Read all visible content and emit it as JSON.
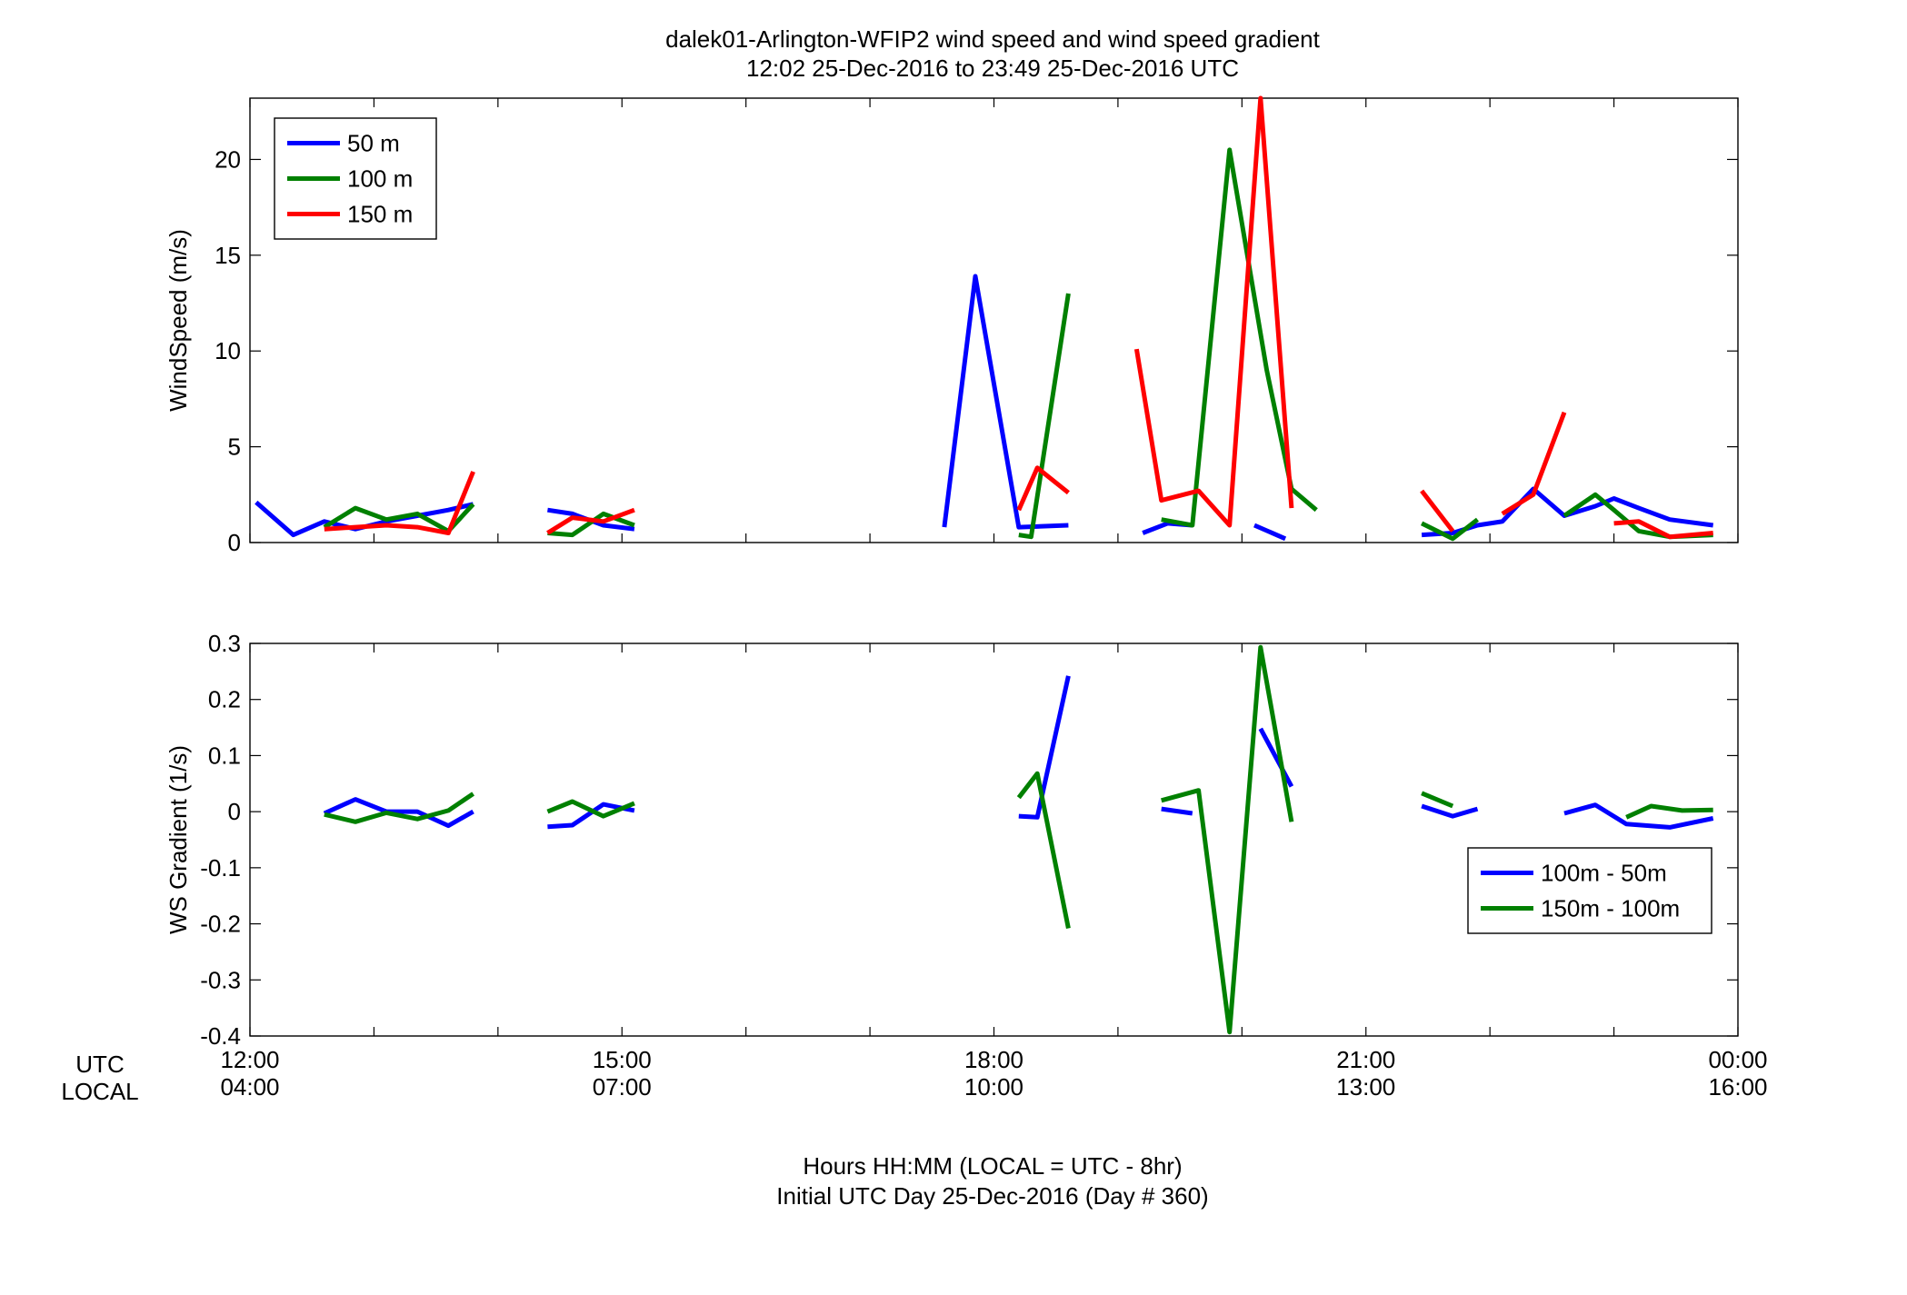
{
  "figure": {
    "title_line1": "dalek01-Arlington-WFIP2  wind speed and wind speed gradient",
    "title_line2": "12:02 25-Dec-2016 to 23:49 25-Dec-2016  UTC",
    "xlabel_line1": "Hours HH:MM  (LOCAL = UTC - 8hr)",
    "xlabel_line2": "Initial UTC Day 25-Dec-2016 (Day # 360)",
    "row_label_utc": "UTC",
    "row_label_local": "LOCAL",
    "colors": {
      "blue": "#0000ff",
      "green": "#008000",
      "red": "#ff0000"
    }
  },
  "chart_data": [
    {
      "type": "line",
      "ylabel": "WindSpeed (m/s)",
      "xlim": [
        12,
        24
      ],
      "ylim": [
        0,
        23.2
      ],
      "x_ticks": [
        12,
        13,
        14,
        15,
        16,
        17,
        18,
        19,
        20,
        21,
        22,
        23,
        24
      ],
      "x_tick_labels_utc": [
        "12:00",
        "15:00",
        "18:00",
        "21:00",
        "00:00"
      ],
      "x_tick_labels_local": [
        "04:00",
        "07:00",
        "10:00",
        "13:00",
        "16:00"
      ],
      "x_tick_label_hours": [
        12,
        15,
        18,
        21,
        24
      ],
      "y_ticks": [
        0,
        5,
        10,
        15,
        20
      ],
      "legend_position": "top-left",
      "series": [
        {
          "name": "50 m",
          "color": "#0000ff",
          "segments": [
            [
              [
                12.05,
                2.1
              ],
              [
                12.35,
                0.4
              ],
              [
                12.6,
                1.1
              ],
              [
                12.85,
                0.7
              ],
              [
                13.1,
                1.1
              ],
              [
                13.35,
                1.4
              ],
              [
                13.6,
                1.7
              ],
              [
                13.8,
                2.0
              ]
            ],
            [
              [
                14.4,
                1.7
              ],
              [
                14.6,
                1.5
              ],
              [
                14.85,
                0.9
              ],
              [
                15.1,
                0.7
              ]
            ],
            [
              [
                17.6,
                0.8
              ],
              [
                17.85,
                13.9
              ],
              [
                18.2,
                0.8
              ],
              [
                18.6,
                0.9
              ]
            ],
            [
              [
                19.2,
                0.5
              ],
              [
                19.4,
                1.0
              ],
              [
                19.6,
                0.9
              ]
            ],
            [
              [
                20.1,
                0.9
              ],
              [
                20.35,
                0.2
              ]
            ],
            [
              [
                21.45,
                0.4
              ],
              [
                21.7,
                0.5
              ],
              [
                21.9,
                0.9
              ],
              [
                22.1,
                1.1
              ],
              [
                22.35,
                2.8
              ],
              [
                22.6,
                1.4
              ],
              [
                22.85,
                1.9
              ],
              [
                23.0,
                2.3
              ],
              [
                23.2,
                1.8
              ],
              [
                23.45,
                1.2
              ],
              [
                23.8,
                0.9
              ]
            ]
          ]
        },
        {
          "name": "100 m",
          "color": "#008000",
          "segments": [
            [
              [
                12.6,
                0.8
              ],
              [
                12.85,
                1.8
              ],
              [
                13.1,
                1.2
              ],
              [
                13.35,
                1.5
              ],
              [
                13.6,
                0.6
              ],
              [
                13.8,
                2.0
              ]
            ],
            [
              [
                14.4,
                0.5
              ],
              [
                14.6,
                0.4
              ],
              [
                14.85,
                1.5
              ],
              [
                15.1,
                0.9
              ]
            ],
            [
              [
                18.2,
                0.4
              ],
              [
                18.3,
                0.3
              ],
              [
                18.6,
                13.0
              ]
            ],
            [
              [
                19.35,
                1.2
              ],
              [
                19.6,
                0.9
              ],
              [
                19.9,
                20.5
              ],
              [
                20.2,
                9.0
              ],
              [
                20.4,
                2.8
              ],
              [
                20.6,
                1.7
              ]
            ],
            [
              [
                21.45,
                1.0
              ],
              [
                21.7,
                0.2
              ],
              [
                21.9,
                1.2
              ]
            ],
            [
              [
                22.6,
                1.4
              ],
              [
                22.85,
                2.5
              ],
              [
                23.0,
                1.7
              ],
              [
                23.2,
                0.6
              ],
              [
                23.45,
                0.3
              ],
              [
                23.8,
                0.4
              ]
            ]
          ]
        },
        {
          "name": "150 m",
          "color": "#ff0000",
          "segments": [
            [
              [
                12.6,
                0.7
              ],
              [
                12.85,
                0.8
              ],
              [
                13.1,
                0.9
              ],
              [
                13.35,
                0.8
              ],
              [
                13.6,
                0.5
              ],
              [
                13.8,
                3.7
              ]
            ],
            [
              [
                14.4,
                0.5
              ],
              [
                14.6,
                1.3
              ],
              [
                14.85,
                1.1
              ],
              [
                15.1,
                1.7
              ]
            ],
            [
              [
                18.2,
                1.7
              ],
              [
                18.35,
                3.9
              ],
              [
                18.6,
                2.6
              ]
            ],
            [
              [
                19.15,
                10.1
              ],
              [
                19.35,
                2.2
              ],
              [
                19.65,
                2.7
              ],
              [
                19.9,
                0.9
              ],
              [
                20.15,
                23.2
              ],
              [
                20.4,
                1.8
              ]
            ],
            [
              [
                21.45,
                2.7
              ],
              [
                21.7,
                0.6
              ]
            ],
            [
              [
                22.1,
                1.5
              ],
              [
                22.35,
                2.5
              ],
              [
                22.6,
                6.8
              ]
            ],
            [
              [
                23.0,
                1.0
              ],
              [
                23.2,
                1.1
              ],
              [
                23.45,
                0.3
              ],
              [
                23.8,
                0.5
              ]
            ]
          ]
        }
      ]
    },
    {
      "type": "line",
      "ylabel": "WS Gradient (1/s)",
      "xlim": [
        12,
        24
      ],
      "ylim": [
        -0.4,
        0.3
      ],
      "x_ticks": [
        12,
        13,
        14,
        15,
        16,
        17,
        18,
        19,
        20,
        21,
        22,
        23,
        24
      ],
      "y_ticks": [
        -0.4,
        -0.3,
        -0.2,
        -0.1,
        0,
        0.1,
        0.2,
        0.3
      ],
      "y_tick_labels": [
        "-0.4",
        "-0.3",
        "-0.2",
        "-0.1",
        "0",
        "0.1",
        "0.2",
        "0.3"
      ],
      "legend_position": "right",
      "series": [
        {
          "name": "100m - 50m",
          "color": "#0000ff",
          "segments": [
            [
              [
                12.6,
                -0.003
              ],
              [
                12.85,
                0.022
              ],
              [
                13.1,
                0.0
              ],
              [
                13.35,
                0.0
              ],
              [
                13.6,
                -0.025
              ],
              [
                13.8,
                0.0
              ]
            ],
            [
              [
                14.4,
                -0.027
              ],
              [
                14.6,
                -0.024
              ],
              [
                14.85,
                0.013
              ],
              [
                15.1,
                0.002
              ]
            ],
            [
              [
                18.2,
                -0.008
              ],
              [
                18.35,
                -0.01
              ],
              [
                18.6,
                0.242
              ]
            ],
            [
              [
                19.35,
                0.005
              ],
              [
                19.6,
                -0.003
              ]
            ],
            [
              [
                20.15,
                0.148
              ],
              [
                20.4,
                0.045
              ]
            ],
            [
              [
                21.45,
                0.01
              ],
              [
                21.7,
                -0.008
              ],
              [
                21.9,
                0.005
              ]
            ],
            [
              [
                22.6,
                -0.003
              ],
              [
                22.85,
                0.012
              ],
              [
                23.1,
                -0.022
              ],
              [
                23.45,
                -0.028
              ],
              [
                23.8,
                -0.012
              ]
            ]
          ]
        },
        {
          "name": "150m - 100m",
          "color": "#008000",
          "segments": [
            [
              [
                12.6,
                -0.005
              ],
              [
                12.85,
                -0.018
              ],
              [
                13.1,
                -0.002
              ],
              [
                13.35,
                -0.013
              ],
              [
                13.6,
                0.002
              ],
              [
                13.8,
                0.032
              ]
            ],
            [
              [
                14.4,
                0.0
              ],
              [
                14.6,
                0.018
              ],
              [
                14.85,
                -0.008
              ],
              [
                15.1,
                0.015
              ]
            ],
            [
              [
                18.2,
                0.025
              ],
              [
                18.35,
                0.068
              ],
              [
                18.6,
                -0.208
              ]
            ],
            [
              [
                19.35,
                0.02
              ],
              [
                19.65,
                0.038
              ],
              [
                19.9,
                -0.393
              ],
              [
                20.15,
                0.293
              ],
              [
                20.4,
                -0.018
              ]
            ],
            [
              [
                21.45,
                0.033
              ],
              [
                21.7,
                0.01
              ]
            ],
            [
              [
                23.1,
                -0.01
              ],
              [
                23.3,
                0.01
              ],
              [
                23.55,
                0.002
              ],
              [
                23.8,
                0.003
              ]
            ]
          ]
        }
      ]
    }
  ]
}
